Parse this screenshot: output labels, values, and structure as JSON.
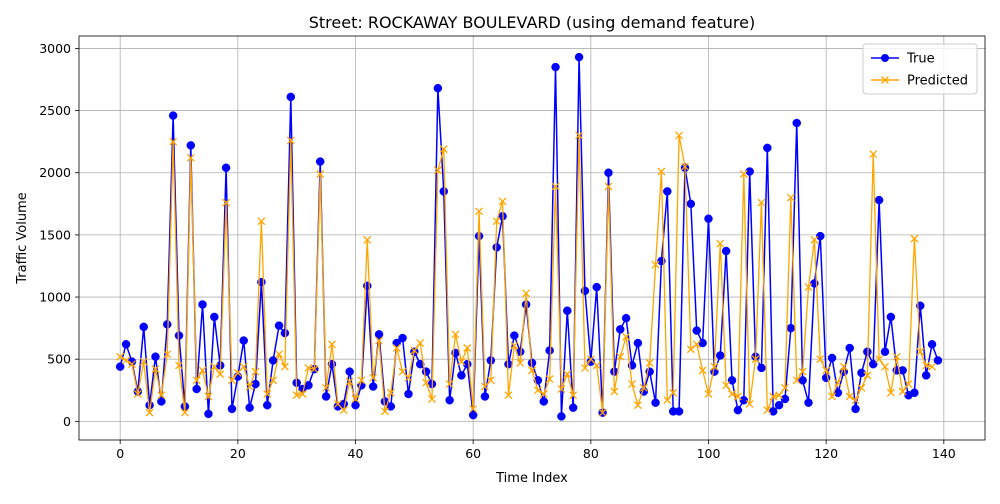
{
  "chart_data": {
    "type": "line",
    "title": "Street: ROCKAWAY BOULEVARD (using demand feature)",
    "xlabel": "Time Index",
    "ylabel": "Traffic Volume",
    "xlim": [
      -7,
      147
    ],
    "ylim": [
      -150,
      3100
    ],
    "xticks": [
      0,
      20,
      40,
      60,
      80,
      100,
      120,
      140
    ],
    "yticks": [
      0,
      500,
      1000,
      1500,
      2000,
      2500,
      3000
    ],
    "grid": true,
    "legend_position": "upper-right",
    "colors": {
      "true": "#0000ff",
      "predicted": "#ffa500"
    },
    "series": [
      {
        "name": "True",
        "marker": "circle",
        "values": [
          440,
          620,
          480,
          240,
          760,
          130,
          520,
          160,
          780,
          2460,
          690,
          120,
          2220,
          260,
          940,
          60,
          840,
          450,
          2040,
          100,
          360,
          650,
          110,
          300,
          1120,
          130,
          490,
          770,
          710,
          2610,
          310,
          260,
          290,
          420,
          2090,
          200,
          460,
          120,
          140,
          400,
          130,
          290,
          1090,
          280,
          700,
          160,
          120,
          630,
          670,
          220,
          560,
          460,
          400,
          300,
          2680,
          1850,
          170,
          550,
          370,
          460,
          50,
          1490,
          200,
          490,
          1400,
          1650,
          460,
          690,
          560,
          940,
          470,
          330,
          160,
          570,
          2850,
          40,
          890,
          110,
          2930,
          1050,
          480,
          1080,
          70,
          2000,
          400,
          740,
          830,
          450,
          630,
          240,
          400,
          150,
          1290,
          1850,
          80,
          80,
          2040,
          1750,
          730,
          630,
          1630,
          400,
          530,
          1370,
          330,
          90,
          170,
          2010,
          520,
          430,
          2200,
          80,
          130,
          180,
          750,
          2400,
          330,
          150,
          1110,
          1490,
          350,
          510,
          230,
          400,
          590,
          100,
          390,
          560,
          460,
          1780,
          560,
          840,
          410,
          410,
          210,
          230,
          930,
          370,
          620,
          490
        ]
      },
      {
        "name": "Predicted",
        "marker": "x",
        "values": [
          520,
          490,
          460,
          220,
          480,
          70,
          420,
          210,
          540,
          2250,
          450,
          70,
          2120,
          330,
          410,
          200,
          440,
          380,
          1760,
          330,
          390,
          440,
          280,
          400,
          1610,
          220,
          330,
          540,
          440,
          2260,
          210,
          220,
          430,
          420,
          1990,
          270,
          620,
          140,
          90,
          320,
          180,
          330,
          1460,
          350,
          650,
          80,
          230,
          590,
          400,
          350,
          570,
          630,
          310,
          180,
          2020,
          2190,
          300,
          700,
          480,
          590,
          100,
          1690,
          280,
          330,
          1610,
          1770,
          210,
          610,
          470,
          1030,
          410,
          250,
          220,
          340,
          1890,
          260,
          380,
          210,
          2300,
          430,
          500,
          450,
          70,
          1890,
          240,
          520,
          680,
          300,
          130,
          270,
          470,
          1260,
          2010,
          170,
          230,
          2300,
          2050,
          580,
          620,
          410,
          220,
          440,
          1430,
          290,
          220,
          200,
          1990,
          140,
          500,
          1760,
          90,
          200,
          210,
          270,
          1800,
          330,
          400,
          1080,
          1460,
          500,
          410,
          200,
          310,
          440,
          200,
          170,
          270,
          370,
          2150,
          500,
          440,
          230,
          520,
          240,
          300,
          1470,
          560,
          450,
          440
        ]
      }
    ]
  }
}
